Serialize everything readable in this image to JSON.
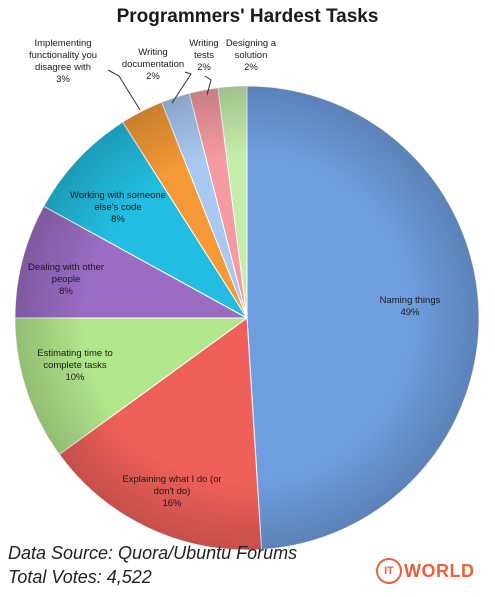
{
  "chart_data": {
    "type": "pie",
    "title": "Programmers' Hardest Tasks",
    "slices": [
      {
        "label": "Naming things",
        "value": 49,
        "value_label": "49%",
        "color": "#6f9ee0"
      },
      {
        "label": "Explaining what I do (or don't do)",
        "value": 16,
        "value_label": "16%",
        "color": "#f0605a"
      },
      {
        "label": "Estimating time to complete tasks",
        "value": 10,
        "value_label": "10%",
        "color": "#b2e68c"
      },
      {
        "label": "Dealing with other people",
        "value": 8,
        "value_label": "8%",
        "color": "#9a6cc4"
      },
      {
        "label": "Working with someone else's code",
        "value": 8,
        "value_label": "8%",
        "color": "#22bde0"
      },
      {
        "label": "Implementing functionality you disagree with",
        "value": 3,
        "value_label": "3%",
        "color": "#f59a36"
      },
      {
        "label": "Writing documentation",
        "value": 2,
        "value_label": "2%",
        "color": "#a9c8f2"
      },
      {
        "label": "Writing tests",
        "value": 2,
        "value_label": "2%",
        "color": "#f59aa0"
      },
      {
        "label": "Designing a solution",
        "value": 2,
        "value_label": "2%",
        "color": "#c4ecaa"
      }
    ]
  },
  "footer": {
    "source": "Data Source: Quora/Ubuntu Forums",
    "votes": "Total Votes: 4,522"
  },
  "logo": {
    "ring_text": "IT",
    "word": "WORLD",
    "color": "#e8603c"
  }
}
